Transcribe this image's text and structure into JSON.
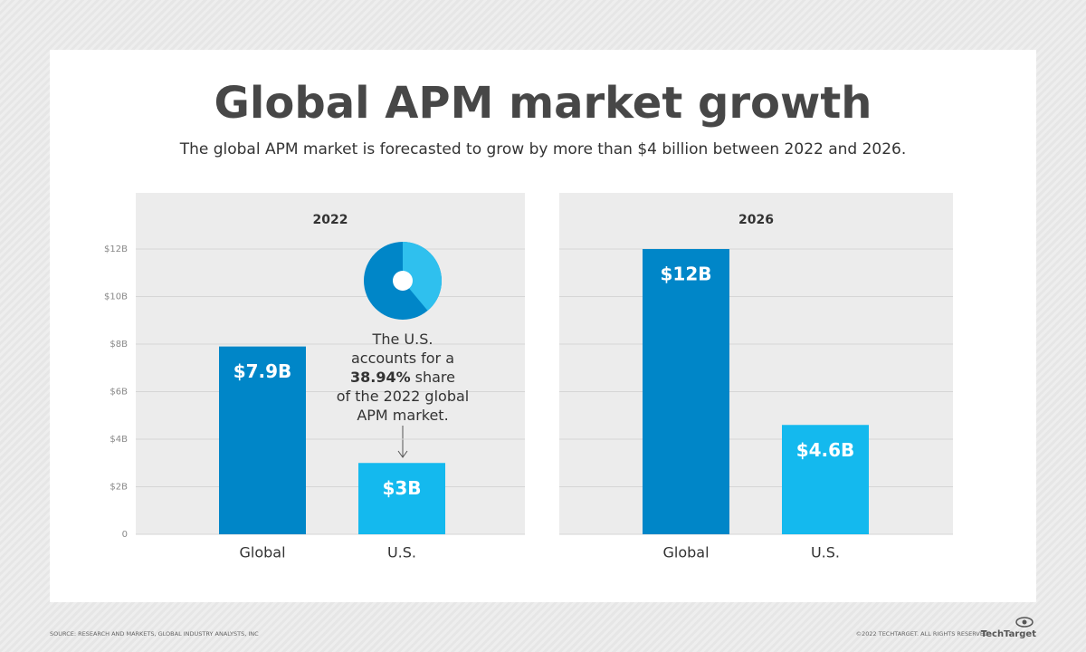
{
  "title": "Global APM market growth",
  "subtitle": "The global APM market is forecasted to grow by more than $4 billion between 2022 and 2026.",
  "source": "SOURCE: RESEARCH AND MARKETS, GLOBAL INDUSTRY ANALYSTS, INC",
  "copyright": "©2022 TECHTARGET. ALL RIGHTS RESERVED",
  "logo": "TechTarget",
  "chart_data": [
    {
      "type": "bar",
      "title": "2022",
      "categories": [
        "Global",
        "U.S."
      ],
      "values": [
        7.9,
        3
      ],
      "value_labels": [
        "$7.9B",
        "$3B"
      ],
      "colors": [
        "#0086c8",
        "#14b9ee"
      ],
      "ylim": [
        0,
        12
      ],
      "yticks": [
        0,
        {
          "value": 2,
          "label": "$2B"
        },
        {
          "value": 4,
          "label": "$4B"
        },
        {
          "value": 6,
          "label": "$6B"
        },
        {
          "value": 8,
          "label": "$8B"
        },
        {
          "value": 10,
          "label": "$10B"
        },
        {
          "value": 12,
          "label": "$12B"
        }
      ],
      "tick_labels": true,
      "grid": true
    },
    {
      "type": "pie",
      "values": [
        38.94
      ],
      "value_labels": [
        "38.94%"
      ],
      "colors": [
        "#2fc0ee"
      ],
      "background_color": "#0086c8",
      "annotation_before": [
        "The U.S.",
        "accounts for a"
      ],
      "annotation_after": [
        "share",
        "of the 2022 global",
        "APM market."
      ]
    },
    {
      "type": "bar",
      "title": "2026",
      "categories": [
        "Global",
        "U.S."
      ],
      "values": [
        12,
        4.6
      ],
      "value_labels": [
        "$12B",
        "$4.6B"
      ],
      "colors": [
        "#0086c8",
        "#14b9ee"
      ],
      "ylim": [
        0,
        12
      ],
      "yticks": [
        0,
        2,
        4,
        6,
        8,
        10,
        12
      ],
      "tick_labels": false,
      "grid": true
    }
  ]
}
